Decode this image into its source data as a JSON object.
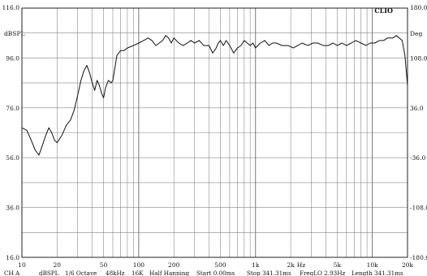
{
  "chart_data": {
    "type": "line",
    "brand": "CLIO",
    "left_unit": "dBSPL",
    "right_unit": "Deg",
    "x_unit": "Hz",
    "x_scale": "log",
    "xlim": [
      10,
      20000
    ],
    "ylim": [
      16.0,
      116.0
    ],
    "y2lim": [
      -180.0,
      180.0
    ],
    "grid": true,
    "x_ticks": [
      {
        "value": 10,
        "label": "10"
      },
      {
        "value": 20,
        "label": "20"
      },
      {
        "value": 50,
        "label": "50"
      },
      {
        "value": 100,
        "label": "100"
      },
      {
        "value": 200,
        "label": "200"
      },
      {
        "value": 500,
        "label": "500"
      },
      {
        "value": 1000,
        "label": "1k"
      },
      {
        "value": 2000,
        "label": "2k"
      },
      {
        "value": 5000,
        "label": "5k"
      },
      {
        "value": 10000,
        "label": "10k"
      },
      {
        "value": 20000,
        "label": "20k"
      }
    ],
    "y_ticks": [
      {
        "value": 116,
        "label": "116.0"
      },
      {
        "value": 96,
        "label": "96.0"
      },
      {
        "value": 76,
        "label": "76.0"
      },
      {
        "value": 56,
        "label": "56.0"
      },
      {
        "value": 36,
        "label": "36.0"
      },
      {
        "value": 16,
        "label": "16.0"
      }
    ],
    "y2_ticks": [
      {
        "value": 180,
        "label": "180.0"
      },
      {
        "value": 108,
        "label": "108.0"
      },
      {
        "value": 36,
        "label": "36.0"
      },
      {
        "value": -36,
        "label": "-36.0"
      },
      {
        "value": -108,
        "label": "-108.0"
      },
      {
        "value": -180,
        "label": "-180.0"
      }
    ],
    "series": [
      {
        "color": "#111111",
        "x": [
          10,
          11,
          12,
          13,
          14,
          15,
          16,
          17,
          18,
          19,
          20,
          22,
          24,
          26,
          28,
          30,
          32,
          34,
          36,
          38,
          40,
          42,
          44,
          46,
          48,
          50,
          52,
          55,
          58,
          60,
          65,
          70,
          75,
          80,
          90,
          100,
          110,
          120,
          130,
          140,
          150,
          160,
          170,
          180,
          190,
          200,
          220,
          240,
          260,
          280,
          300,
          330,
          360,
          400,
          430,
          460,
          480,
          500,
          530,
          560,
          600,
          650,
          700,
          750,
          800,
          850,
          900,
          950,
          1000,
          1100,
          1200,
          1300,
          1400,
          1500,
          1700,
          1900,
          2100,
          2300,
          2500,
          2800,
          3100,
          3400,
          3800,
          4200,
          4600,
          5000,
          5500,
          6000,
          6600,
          7200,
          8000,
          8800,
          9600,
          10500,
          11500,
          12500,
          13500,
          15000,
          16000,
          17000,
          18000,
          19000,
          20000
        ],
        "y": [
          68,
          67,
          63,
          59,
          57,
          61,
          65,
          68,
          66,
          63,
          62,
          65,
          69,
          71,
          75,
          81,
          87,
          91,
          93,
          90,
          86,
          83,
          87,
          85,
          82,
          80,
          84,
          87,
          86,
          87,
          97,
          99,
          99,
          100,
          101,
          102,
          103,
          104,
          103,
          101,
          102,
          103,
          105,
          104,
          102,
          104,
          102,
          101,
          102,
          103,
          102,
          103,
          101,
          101,
          98,
          100,
          102,
          103,
          101,
          103,
          101,
          98,
          100,
          101,
          103,
          102,
          101,
          102,
          100,
          102,
          103,
          101,
          102,
          102,
          101,
          101,
          100,
          101,
          102,
          101,
          102,
          102,
          101,
          101,
          102,
          101,
          102,
          101,
          102,
          103,
          102,
          101,
          102,
          102,
          103,
          103,
          104,
          104,
          105,
          104,
          103,
          97,
          85
        ]
      }
    ],
    "footer": [
      "CH A",
      "dBSPL",
      "1/6 Octave",
      "48kHz",
      "16K",
      "Half Hanning",
      "Start 0.00ms",
      "Stop 341.31ms",
      "FreqLO 2.93Hz",
      "Length 341.31ms"
    ]
  }
}
